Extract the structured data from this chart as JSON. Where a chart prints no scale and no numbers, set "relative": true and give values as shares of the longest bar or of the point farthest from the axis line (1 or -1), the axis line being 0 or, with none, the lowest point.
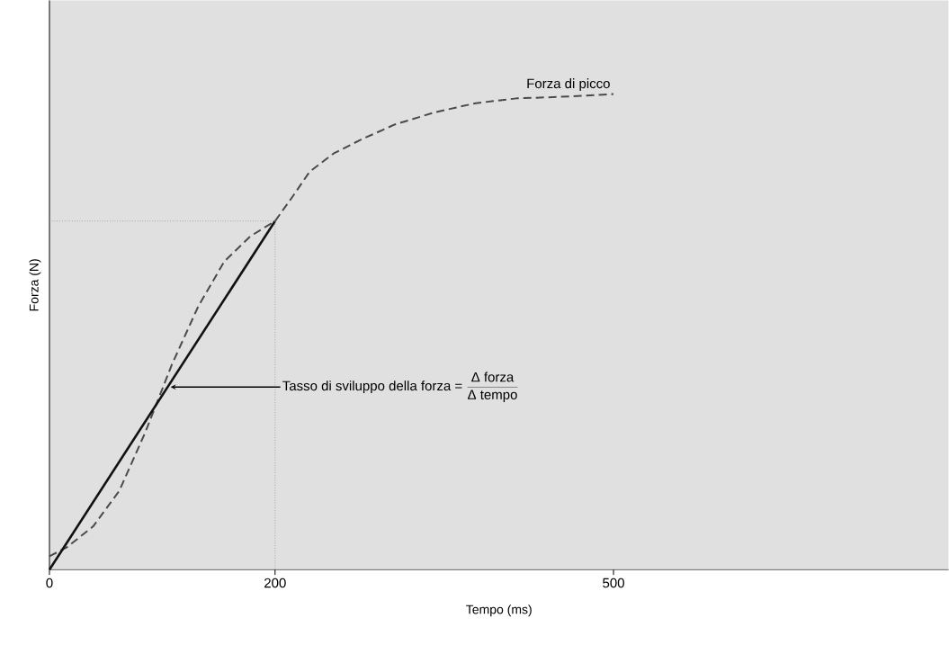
{
  "chart_data": {
    "type": "line",
    "relative": true,
    "xlabel": "Tempo (ms)",
    "ylabel": "Forza (N)",
    "xlim": [
      0,
      797
    ],
    "xticks": [
      0,
      200,
      500
    ],
    "marker": "none",
    "series": [
      {
        "color": "#4a4a4a",
        "line_style": "dashed",
        "x": [
          0,
          15.5,
          38.8,
          62,
          85,
          108.5,
          132,
          155,
          178,
          200,
          215.7,
          230.7,
          251.8,
          275.9,
          306,
          342,
          378,
          414,
          450.6,
          500
        ],
        "values": [
          0.028,
          0.047,
          0.091,
          0.166,
          0.289,
          0.431,
          0.554,
          0.648,
          0.701,
          0.733,
          0.785,
          0.837,
          0.875,
          0.904,
          0.936,
          0.962,
          0.981,
          0.991,
          0.994,
          1
        ]
      },
      {
        "color": "#111111",
        "line_style": "solid",
        "x": [
          0,
          200
        ],
        "values": [
          0,
          0.733
        ]
      },
      {
        "color": "#888888",
        "line_style": "dotted",
        "x": [
          0,
          200,
          200
        ],
        "values": [
          0.733,
          0.733,
          0
        ]
      }
    ],
    "annotations": [
      {
        "text": "Forza di picco",
        "x": 500,
        "y": 1
      },
      {
        "text": "Tasso di sviluppo della forza =",
        "x": 105,
        "y": 0.384
      },
      "Δ forza",
      "Δ tempo"
    ]
  }
}
